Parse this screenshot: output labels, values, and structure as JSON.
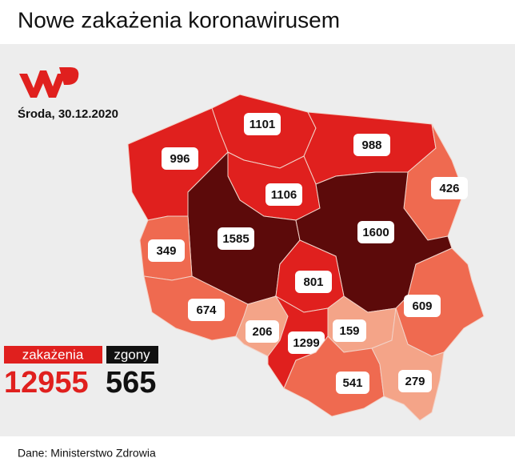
{
  "header": {
    "title": "Nowe zakażenia koronawirusem",
    "date": "Środa, 30.12.2020"
  },
  "totals": {
    "infections_label": "zakażenia",
    "infections": 12955,
    "deaths_label": "zgony",
    "deaths": 565
  },
  "regions": [
    {
      "value": 1101,
      "color": "#e0201e"
    },
    {
      "value": 996,
      "color": "#e0201e"
    },
    {
      "value": 988,
      "color": "#e0201e"
    },
    {
      "value": 426,
      "color": "#ef6a50"
    },
    {
      "value": 1106,
      "color": "#e0201e"
    },
    {
      "value": 1585,
      "color": "#5c0a0a"
    },
    {
      "value": 349,
      "color": "#ef6a50"
    },
    {
      "value": 1600,
      "color": "#5c0a0a"
    },
    {
      "value": 801,
      "color": "#e0201e"
    },
    {
      "value": 609,
      "color": "#ef6a50"
    },
    {
      "value": 674,
      "color": "#ef6a50"
    },
    {
      "value": 206,
      "color": "#f4a488"
    },
    {
      "value": 1299,
      "color": "#e0201e"
    },
    {
      "value": 159,
      "color": "#f4a488"
    },
    {
      "value": 541,
      "color": "#ef6a50"
    },
    {
      "value": 279,
      "color": "#f4a488"
    }
  ],
  "footer": {
    "source": "Dane: Ministerstwo Zdrowia"
  }
}
